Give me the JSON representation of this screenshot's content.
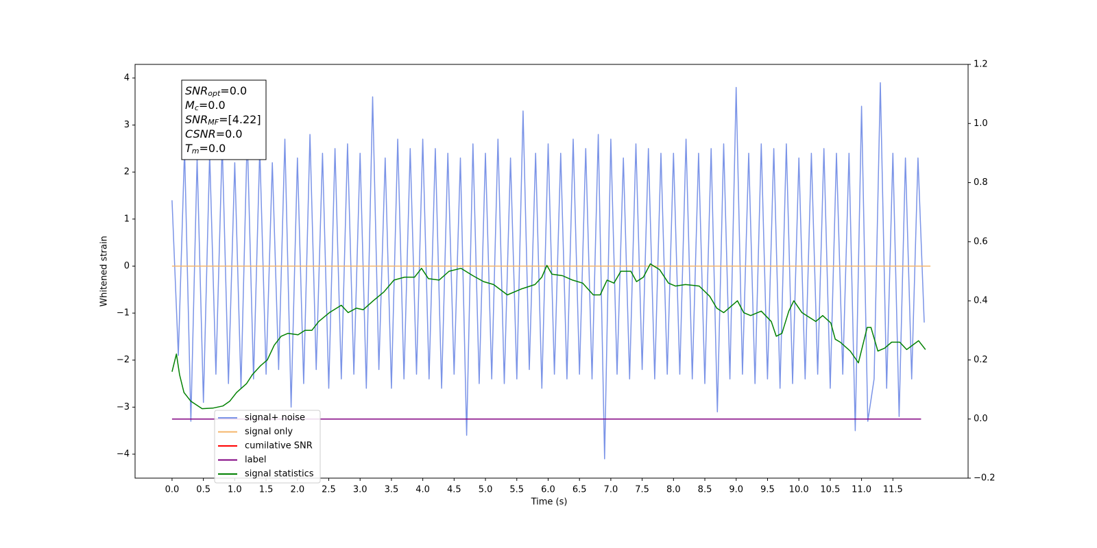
{
  "chart_data": {
    "type": "line",
    "xlabel": "Time (s)",
    "ylabel": "Whitened strain",
    "xlim": [
      -0.59,
      12.7
    ],
    "ylim": [
      -4.51,
      4.29
    ],
    "y2lim": [
      -0.2,
      1.2
    ],
    "xticks": [
      {
        "value": 0,
        "label": "0.0"
      },
      {
        "value": 0.5,
        "label": "0.5"
      },
      {
        "value": 1,
        "label": "1.0"
      },
      {
        "value": 1.5,
        "label": "1.5"
      },
      {
        "value": 2,
        "label": "2.0"
      },
      {
        "value": 2.5,
        "label": "2.5"
      },
      {
        "value": 3,
        "label": "3.0"
      },
      {
        "value": 3.5,
        "label": "3.5"
      },
      {
        "value": 4,
        "label": "4.0"
      },
      {
        "value": 4.5,
        "label": "4.5"
      },
      {
        "value": 5,
        "label": "5.0"
      },
      {
        "value": 5.5,
        "label": "5.5"
      },
      {
        "value": 6,
        "label": "6.0"
      },
      {
        "value": 6.5,
        "label": "6.5"
      },
      {
        "value": 7,
        "label": "7.0"
      },
      {
        "value": 7.5,
        "label": "7.5"
      },
      {
        "value": 8,
        "label": "8.0"
      },
      {
        "value": 8.5,
        "label": "8.5"
      },
      {
        "value": 9,
        "label": "9.0"
      },
      {
        "value": 9.5,
        "label": "9.5"
      },
      {
        "value": 10,
        "label": "10.0"
      },
      {
        "value": 10.5,
        "label": "10.5"
      },
      {
        "value": 11,
        "label": "11.0"
      },
      {
        "value": 11.5,
        "label": "11.5"
      }
    ],
    "yticks": [
      {
        "value": -4,
        "label": "−4"
      },
      {
        "value": -3,
        "label": "−3"
      },
      {
        "value": -2,
        "label": "−2"
      },
      {
        "value": -1,
        "label": "−1"
      },
      0,
      1,
      2,
      3,
      4
    ],
    "y2ticks": [
      {
        "value": -0.2,
        "label": "−0.2"
      },
      {
        "value": 0,
        "label": "0.0"
      },
      0.2,
      0.4,
      0.6,
      0.8,
      {
        "value": 1,
        "label": "1.0"
      },
      {
        "value": 1.2,
        "label": "1.2"
      }
    ],
    "annotations": [
      {
        "name": "SNR",
        "sub": "opt",
        "text": "=0.0"
      },
      {
        "name": "M",
        "sub": "c",
        "text": "=0.0"
      },
      {
        "name": "SNR",
        "sub": "MF",
        "text": "=[4.22]"
      },
      {
        "name": "CSNR",
        "sub": "",
        "text": "=0.0"
      },
      {
        "name": "T",
        "sub": "m",
        "text": "=0.0"
      }
    ],
    "series": [
      {
        "name": "signal+ noise",
        "color": "#7a93e7",
        "axis": "y",
        "x": [
          0,
          0.1,
          0.2,
          0.3,
          0.4,
          0.5,
          0.6,
          0.7,
          0.8,
          0.9,
          1,
          1.1,
          1.2,
          1.3,
          1.4,
          1.5,
          1.6,
          1.7,
          1.8,
          1.9,
          2,
          2.1,
          2.2,
          2.3,
          2.4,
          2.5,
          2.6,
          2.7,
          2.8,
          2.9,
          3,
          3.1,
          3.2,
          3.3,
          3.4,
          3.5,
          3.6,
          3.7,
          3.8,
          3.9,
          4,
          4.1,
          4.2,
          4.3,
          4.4,
          4.5,
          4.6,
          4.7,
          4.8,
          4.9,
          5,
          5.1,
          5.2,
          5.3,
          5.4,
          5.5,
          5.6,
          5.7,
          5.8,
          5.9,
          6,
          6.1,
          6.2,
          6.3,
          6.4,
          6.5,
          6.6,
          6.7,
          6.8,
          6.9,
          7,
          7.1,
          7.2,
          7.3,
          7.4,
          7.5,
          7.6,
          7.7,
          7.8,
          7.9,
          8,
          8.1,
          8.2,
          8.3,
          8.4,
          8.5,
          8.6,
          8.7,
          8.8,
          8.9,
          9,
          9.1,
          9.2,
          9.3,
          9.4,
          9.5,
          9.6,
          9.7,
          9.8,
          9.9,
          10,
          10.1,
          10.2,
          10.3,
          10.4,
          10.5,
          10.6,
          10.7,
          10.8,
          10.9,
          11,
          11.1,
          11.2,
          11.3,
          11.4,
          11.5,
          11.6,
          11.7,
          11.8,
          11.9,
          12
        ],
        "values": [
          1.4,
          -1.9,
          2.5,
          -3.3,
          2.3,
          -2.9,
          2.4,
          -2.3,
          2.6,
          -2.5,
          2.2,
          -2.6,
          2.8,
          -2.4,
          2.5,
          -2.3,
          2.2,
          -2.2,
          2.7,
          -3.0,
          2.3,
          -2.5,
          2.8,
          -2.2,
          2.4,
          -2.6,
          2.5,
          -2.4,
          2.6,
          -2.3,
          2.4,
          -2.6,
          3.6,
          -2.2,
          2.3,
          -2.6,
          2.7,
          -2.4,
          2.5,
          -2.3,
          2.7,
          -2.4,
          2.5,
          -2.6,
          2.4,
          -2.3,
          2.3,
          -3.6,
          2.6,
          -2.5,
          2.4,
          -2.4,
          2.7,
          -2.5,
          2.3,
          -2.4,
          3.3,
          -2.2,
          2.4,
          -2.6,
          2.6,
          -2.3,
          2.4,
          -2.4,
          2.7,
          -2.3,
          2.5,
          -2.4,
          2.8,
          -4.1,
          2.7,
          -2.3,
          2.3,
          -2.4,
          2.6,
          -2.2,
          2.5,
          -2.4,
          2.4,
          -2.3,
          2.4,
          -2.3,
          2.7,
          -2.4,
          2.4,
          -2.5,
          2.5,
          -3.1,
          2.6,
          -2.4,
          3.8,
          -2.3,
          2.4,
          -2.5,
          2.6,
          -2.4,
          2.5,
          -2.6,
          2.6,
          -2.5,
          2.3,
          -2.4,
          2.4,
          -2.3,
          2.5,
          -2.6,
          2.4,
          -2.3,
          2.4,
          -3.5,
          3.4,
          -3.3,
          -2.4,
          3.9,
          -2.6,
          2.4,
          -3.2,
          2.3,
          -2.4,
          2.3,
          -1.2
        ]
      },
      {
        "name": "signal only",
        "color": "#f5b56a",
        "axis": "y",
        "x": [
          0,
          12.1
        ],
        "values": [
          0,
          0
        ]
      },
      {
        "name": "cumilative SNR",
        "color": "#ff0000",
        "axis": "y2",
        "x": [],
        "values": []
      },
      {
        "name": "label",
        "color": "#800080",
        "axis": "y2",
        "x": [
          0,
          11.95
        ],
        "values": [
          0,
          0
        ]
      },
      {
        "name": "signal statistics",
        "color": "#008000",
        "axis": "y2",
        "x": [
          0,
          0.07,
          0.12,
          0.19,
          0.3,
          0.48,
          0.65,
          0.81,
          0.92,
          1.03,
          1.19,
          1.28,
          1.41,
          1.52,
          1.63,
          1.74,
          1.85,
          2.01,
          2.12,
          2.23,
          2.34,
          2.51,
          2.7,
          2.81,
          2.94,
          3.05,
          3.21,
          3.38,
          3.54,
          3.71,
          3.87,
          3.98,
          4.09,
          4.26,
          4.42,
          4.61,
          4.8,
          4.97,
          5.13,
          5.35,
          5.57,
          5.79,
          5.9,
          5.98,
          6.06,
          6.23,
          6.39,
          6.55,
          6.72,
          6.83,
          6.94,
          7.05,
          7.16,
          7.32,
          7.41,
          7.52,
          7.63,
          7.78,
          7.92,
          8.03,
          8.19,
          8.41,
          8.58,
          8.69,
          8.8,
          8.91,
          9.02,
          9.12,
          9.23,
          9.4,
          9.56,
          9.64,
          9.73,
          9.84,
          9.92,
          10.05,
          10.27,
          10.38,
          10.51,
          10.58,
          10.66,
          10.82,
          10.95,
          11.09,
          11.15,
          11.26,
          11.37,
          11.48,
          11.61,
          11.72,
          11.91,
          12.02
        ],
        "values": [
          0.16,
          0.22,
          0.15,
          0.09,
          0.06,
          0.035,
          0.037,
          0.044,
          0.06,
          0.09,
          0.12,
          0.15,
          0.18,
          0.2,
          0.25,
          0.28,
          0.29,
          0.285,
          0.3,
          0.3,
          0.33,
          0.36,
          0.385,
          0.36,
          0.375,
          0.37,
          0.4,
          0.43,
          0.47,
          0.48,
          0.48,
          0.51,
          0.475,
          0.47,
          0.5,
          0.51,
          0.485,
          0.465,
          0.455,
          0.42,
          0.44,
          0.455,
          0.48,
          0.52,
          0.49,
          0.485,
          0.47,
          0.46,
          0.42,
          0.42,
          0.47,
          0.46,
          0.5,
          0.5,
          0.465,
          0.48,
          0.525,
          0.505,
          0.46,
          0.45,
          0.455,
          0.45,
          0.415,
          0.375,
          0.36,
          0.38,
          0.4,
          0.36,
          0.35,
          0.365,
          0.33,
          0.28,
          0.29,
          0.365,
          0.4,
          0.36,
          0.33,
          0.35,
          0.325,
          0.27,
          0.26,
          0.23,
          0.19,
          0.31,
          0.31,
          0.23,
          0.24,
          0.26,
          0.26,
          0.235,
          0.265,
          0.235
        ]
      }
    ]
  }
}
